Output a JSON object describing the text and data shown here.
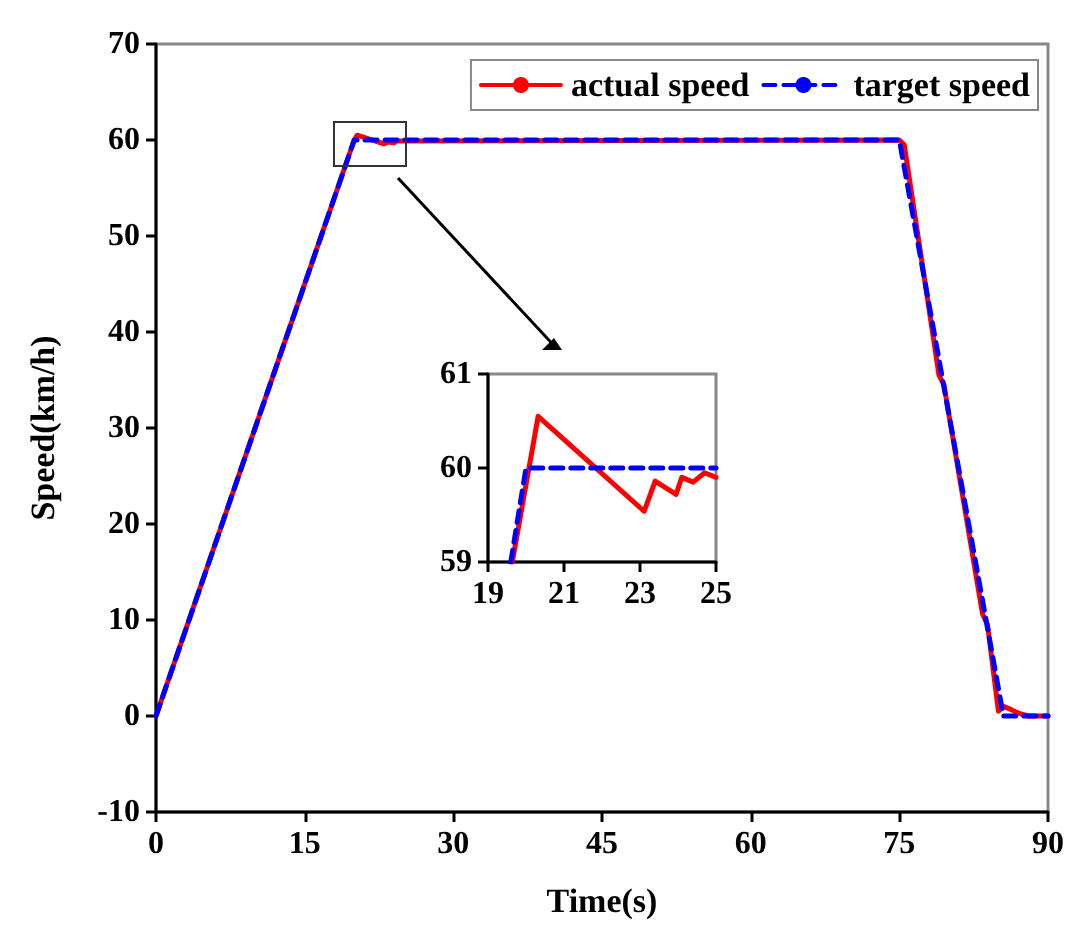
{
  "chart_data": [
    {
      "type": "line",
      "xlabel": "Time(s)",
      "ylabel": "Speed(km/h)",
      "xlim": [
        0,
        90
      ],
      "xticks": [
        0,
        15,
        30,
        45,
        60,
        75,
        90
      ],
      "ylim": [
        -10,
        70
      ],
      "yticks": [
        -10,
        0,
        10,
        20,
        30,
        40,
        50,
        60,
        70
      ],
      "legend": "top right",
      "series": [
        {
          "name": "actual speed",
          "color": "#ff0000",
          "line_style": "solid",
          "x": [
            0,
            20,
            20.3,
            23,
            23.4,
            24,
            24.3,
            25,
            75,
            75.5,
            79,
            79.5,
            83.4,
            83.9,
            85,
            85.5,
            86,
            87,
            88,
            90
          ],
          "values": [
            0,
            60,
            60.5,
            59.6,
            59.8,
            59.7,
            59.9,
            59.9,
            60,
            59.5,
            35.5,
            34.5,
            10.6,
            9.5,
            0.5,
            1,
            0.8,
            0.3,
            0,
            0
          ]
        },
        {
          "name": "target speed",
          "color": "#0000ff",
          "line_style": "dashed",
          "x": [
            0,
            20,
            75,
            85.5,
            90
          ],
          "values": [
            0,
            60,
            60,
            0,
            0
          ]
        }
      ]
    },
    {
      "type": "line",
      "xlim": [
        19,
        25
      ],
      "xticks": [
        19,
        21,
        23,
        25
      ],
      "ylim": [
        59,
        61
      ],
      "yticks": [
        59,
        60,
        61
      ],
      "series": [
        {
          "color": "#ff0000",
          "line_style": "solid",
          "x": [
            19.64,
            20.32,
            23.11,
            23.4,
            23.95,
            24.1,
            24.4,
            24.7,
            25
          ],
          "values": [
            59,
            60.55,
            59.54,
            59.86,
            59.72,
            59.9,
            59.85,
            59.95,
            59.9
          ]
        },
        {
          "color": "#0000ff",
          "line_style": "dashed",
          "x": [
            19.6,
            20,
            25
          ],
          "values": [
            59,
            60,
            60
          ]
        }
      ]
    }
  ]
}
